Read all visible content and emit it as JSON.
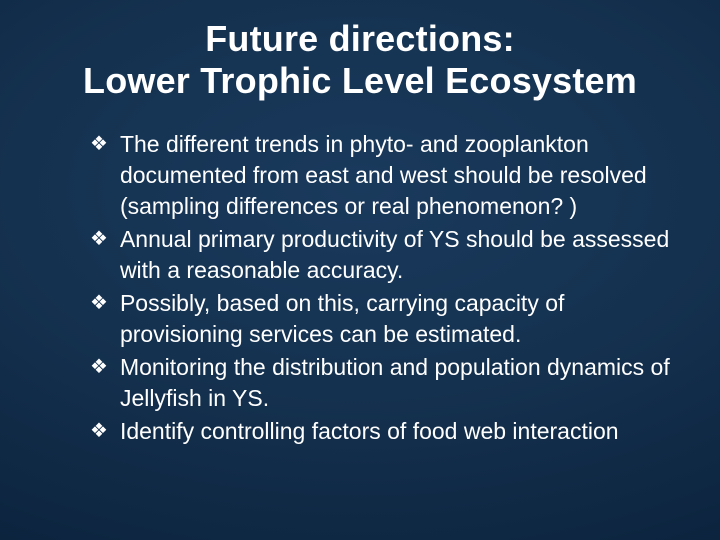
{
  "background": {
    "gradient_center": "#1a3a5d",
    "gradient_mid": "#0d2540",
    "gradient_edge": "#071a30"
  },
  "title": {
    "line1": "Future directions:",
    "line2": "Lower Trophic Level Ecosystem",
    "fontsize": 36,
    "color": "#ffffff",
    "weight": "bold"
  },
  "bullets": {
    "marker": "❖",
    "marker_color": "#ffffff",
    "text_fontsize": 23,
    "text_color": "#ffffff",
    "items": [
      "The different trends in phyto- and zooplankton documented from east and west should be resolved (sampling differences or real phenomenon? )",
      "Annual primary productivity of YS should be assessed with a reasonable accuracy.",
      "Possibly, based on this, carrying capacity of provisioning services can be estimated.",
      "Monitoring the distribution and population dynamics of Jellyfish in YS.",
      "Identify controlling factors of food web interaction"
    ]
  }
}
